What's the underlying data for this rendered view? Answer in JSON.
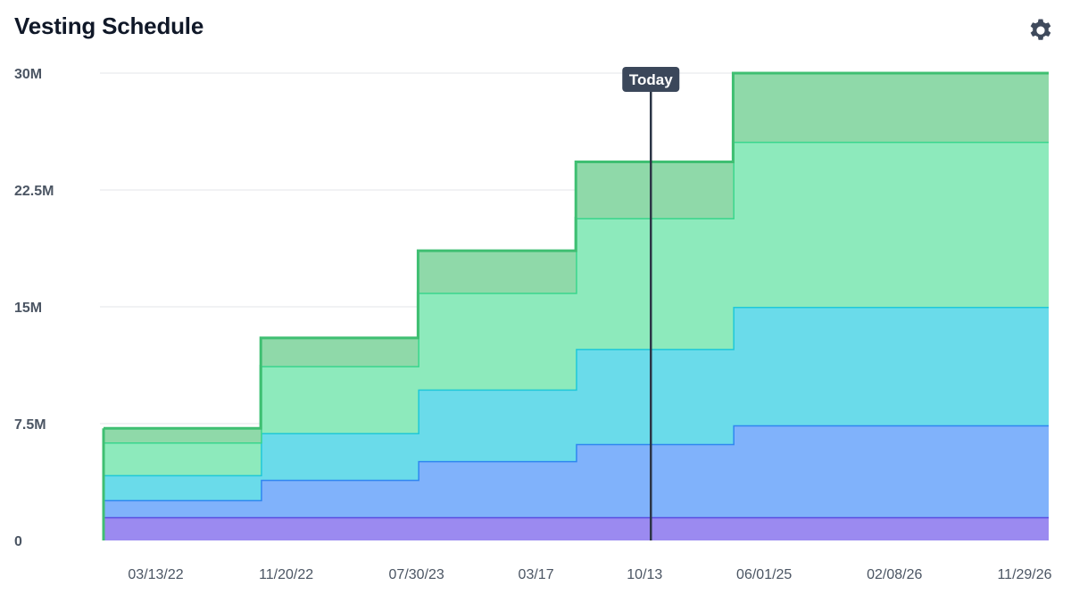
{
  "header": {
    "title": "Vesting Schedule",
    "settings_icon": "gear-icon"
  },
  "chart_data": {
    "type": "area",
    "step": true,
    "stacked": true,
    "title": "Vesting Schedule",
    "xlabel": "",
    "ylabel": "",
    "ylim": [
      0,
      30000000
    ],
    "y_ticks": [
      {
        "value": 0,
        "label": "0"
      },
      {
        "value": 7500000,
        "label": "7.5M"
      },
      {
        "value": 15000000,
        "label": "15M"
      },
      {
        "value": 22500000,
        "label": "22.5M"
      },
      {
        "value": 30000000,
        "label": "30M"
      }
    ],
    "x_range": [
      "2021-12-02",
      "2026-12-03"
    ],
    "x_tick_labels": [
      {
        "date": "2022-03-13",
        "label": "03/13/22"
      },
      {
        "date": "2022-11-20",
        "label": "11/20/22"
      },
      {
        "date": "2023-07-30",
        "label": "07/30/23"
      },
      {
        "date": "2024-03-17",
        "label": "03/17"
      },
      {
        "date": "2024-10-13",
        "label": "10/13"
      },
      {
        "date": "2025-06-01",
        "label": "06/01/25"
      },
      {
        "date": "2026-02-08",
        "label": "02/08/26"
      },
      {
        "date": "2026-11-29",
        "label": "11/29/26"
      }
    ],
    "grid": true,
    "legend": "none",
    "steps_x": [
      "2021-12-02",
      "2022-10-02",
      "2023-08-02",
      "2024-06-02",
      "2025-04-02",
      "2026-02-02",
      "2026-12-03"
    ],
    "series": [
      {
        "values": [
          1500000,
          1500000,
          1500000,
          1500000,
          1500000,
          1500000
        ],
        "fill": "#9b8af0",
        "stroke": "#5b4de0"
      },
      {
        "values": [
          1100000,
          2400000,
          3600000,
          4700000,
          5900000,
          5900000
        ],
        "fill": "#80b2fb",
        "stroke": "#2f86f0"
      },
      {
        "values": [
          1600000,
          3000000,
          4600000,
          6100000,
          7600000,
          7600000
        ],
        "fill": "#6adbea",
        "stroke": "#1fc8d8"
      },
      {
        "values": [
          2100000,
          4300000,
          6200000,
          8400000,
          10600000,
          10600000
        ],
        "fill": "#8deabc",
        "stroke": "#39d68d"
      },
      {
        "values": [
          900000,
          1800000,
          2700000,
          3600000,
          4400000,
          4400000
        ],
        "fill": "#8fd9a9",
        "stroke": "#3fbf72"
      }
    ],
    "today": {
      "date": "2024-10-25",
      "label": "Today"
    }
  }
}
